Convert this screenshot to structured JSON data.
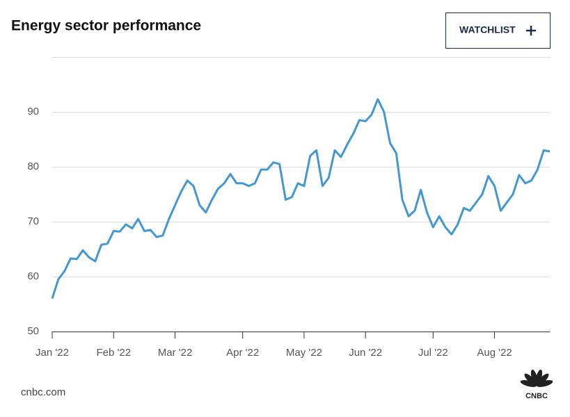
{
  "chart_data": {
    "type": "line",
    "title": "Energy sector performance",
    "button": "WATCHLIST",
    "source": "cnbc.com",
    "logo": "CNBC",
    "color": "#4397d2",
    "categories": [
      "Jan '22",
      null,
      null,
      null,
      null,
      null,
      null,
      null,
      null,
      null,
      "Feb '22",
      null,
      null,
      null,
      null,
      null,
      null,
      null,
      null,
      null,
      "Mar '22",
      null,
      null,
      null,
      null,
      null,
      null,
      null,
      null,
      null,
      null,
      "Apr '22",
      null,
      null,
      null,
      null,
      null,
      null,
      null,
      null,
      null,
      "May '22",
      null,
      null,
      null,
      null,
      null,
      null,
      null,
      null,
      null,
      "Jun '22",
      null,
      null,
      null,
      null,
      null,
      null,
      null,
      null,
      null,
      null,
      "Jul '22",
      null,
      null,
      null,
      null,
      null,
      null,
      null,
      null,
      null,
      "Aug '22",
      null,
      null,
      null,
      null,
      null,
      null,
      null,
      null,
      null
    ],
    "values": [
      56,
      59.5,
      61,
      63.3,
      63.2,
      64.8,
      63.5,
      62.8,
      65.8,
      66,
      68.3,
      68.2,
      69.5,
      68.8,
      70.5,
      68.3,
      68.5,
      67.2,
      67.5,
      70.5,
      73,
      75.5,
      77.5,
      76.5,
      73,
      71.7,
      74,
      76,
      77,
      78.7,
      77,
      77,
      76.5,
      77,
      79.5,
      79.5,
      80.8,
      80.5,
      74,
      74.5,
      77,
      76.5,
      82,
      83,
      76.5,
      78,
      83,
      81.8,
      84,
      86,
      88.5,
      88.3,
      89.5,
      92.3,
      90,
      84.3,
      82.5,
      74,
      71,
      72,
      75.8,
      71.7,
      69,
      71,
      69,
      67.7,
      69.5,
      72.5,
      72,
      73.5,
      75,
      78.3,
      76.5,
      72,
      73.5,
      75,
      78.5,
      77,
      77.5,
      79.5,
      83,
      82.8
    ],
    "ylim": [
      50,
      100
    ],
    "yticks": [
      50,
      60,
      70,
      80,
      90
    ],
    "grid": true
  }
}
